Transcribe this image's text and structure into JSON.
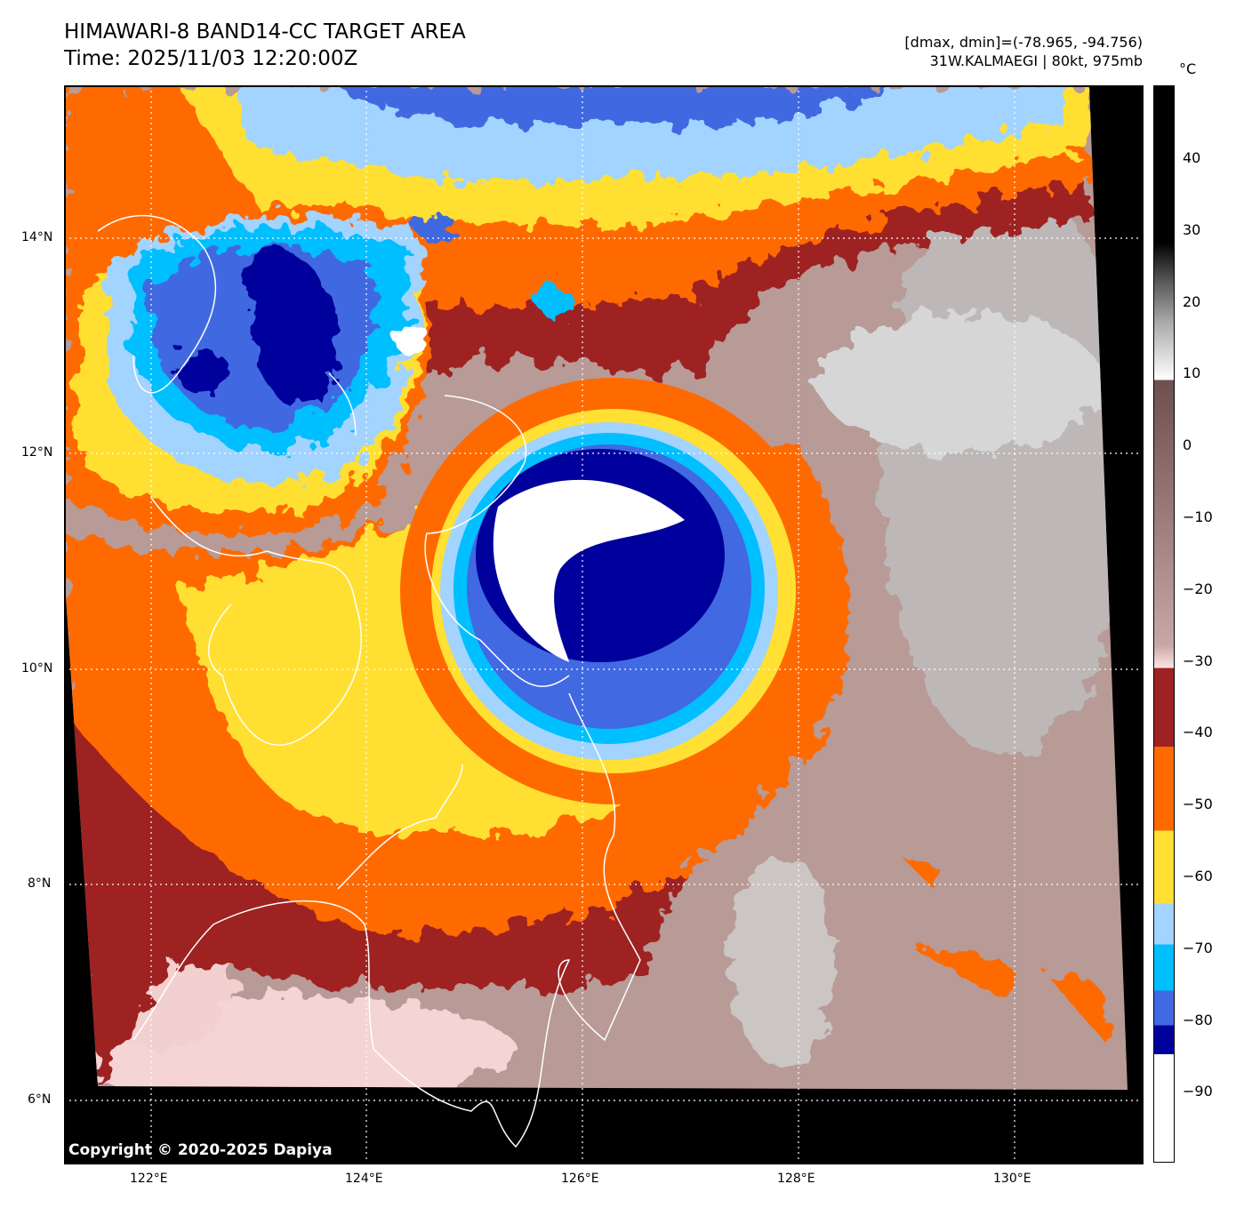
{
  "title": {
    "line1": "HIMAWARI-8 BAND14-CC TARGET AREA",
    "line2": "Time: 2025/11/03 12:20:00Z"
  },
  "info": {
    "line1": "[dmax, dmin]=(-78.965, -94.756)",
    "line2": "31W.KALMAEGI | 80kt, 975mb"
  },
  "copyright": "Copyright © 2020-2025 Dapiya",
  "lon_ticks": [
    "122°E",
    "124°E",
    "126°E",
    "128°E",
    "130°E"
  ],
  "lat_ticks": [
    "14°N",
    "12°N",
    "10°N",
    "8°N",
    "6°N"
  ],
  "colorbar": {
    "unit": "°C",
    "labels": [
      "40",
      "30",
      "20",
      "10",
      "0",
      "−10",
      "−20",
      "−30",
      "−40",
      "−50",
      "−60",
      "−70",
      "−80",
      "−90"
    ],
    "range": [
      -100,
      50
    ]
  },
  "colors": {
    "darkred": "#9e2222",
    "orange": "#ff6a00",
    "yellow": "#ffe033",
    "lightblue": "#a3d3ff",
    "cyan": "#00bfff",
    "royalblue": "#4169e1",
    "navy": "#00009c",
    "brown": "#b89a96"
  }
}
